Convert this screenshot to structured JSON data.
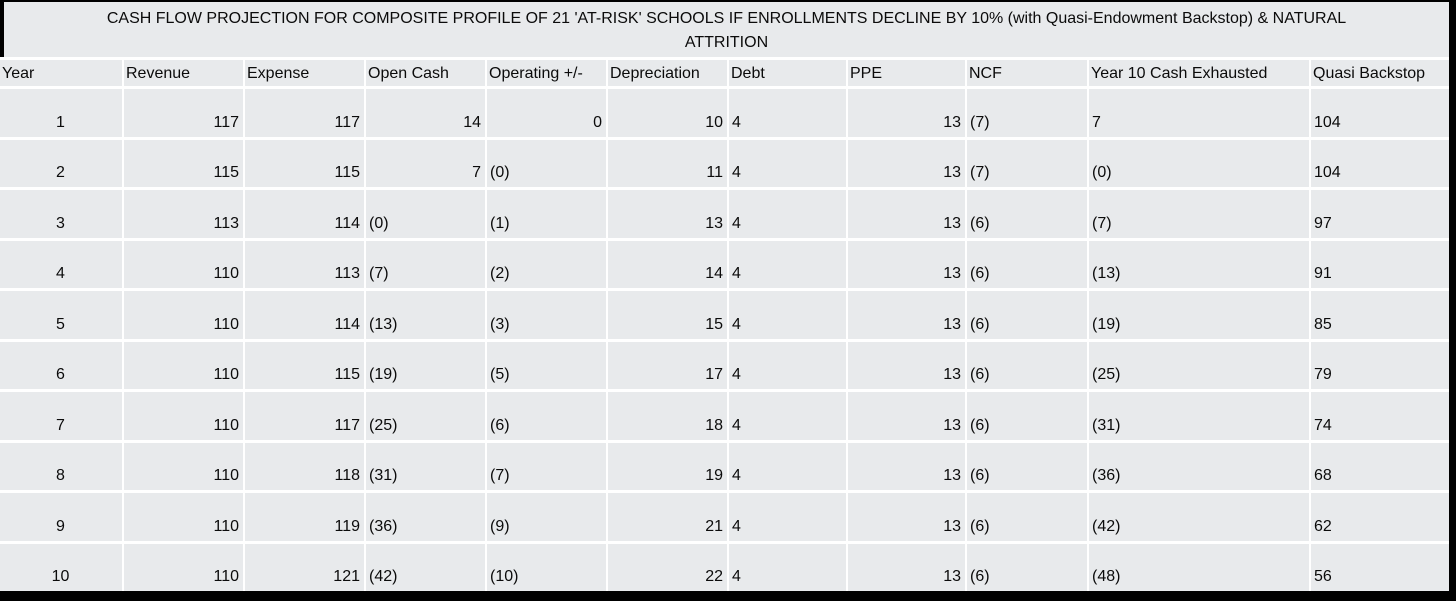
{
  "colors": {
    "cell_background": "#e8eaec",
    "gridline": "#ffffff",
    "canvas_background": "#000000",
    "text": "#0b0b0b"
  },
  "chart_data": {
    "type": "table",
    "title": "CASH FLOW PROJECTION FOR COMPOSITE PROFILE OF 21 'AT-RISK' SCHOOLS IF ENROLLMENTS DECLINE BY 10% (with Quasi-Endowment Backstop) & NATURAL ATTRITION",
    "title_lines": [
      "CASH FLOW PROJECTION FOR COMPOSITE PROFILE OF 21 'AT-RISK' SCHOOLS IF ENROLLMENTS DECLINE BY 10% (with Quasi-Endowment Backstop) & NATURAL",
      "ATTRITION"
    ],
    "columns": [
      "Year",
      "Revenue",
      "Expense",
      "Open Cash",
      "Operating +/-",
      "Depreciation",
      "Debt",
      "PPE",
      "NCF",
      "Year 10 Cash Exhausted",
      "Quasi Backstop"
    ],
    "rows": [
      [
        "1",
        "117",
        "117",
        "14",
        "0",
        "10",
        "4",
        "13",
        "(7)",
        "7",
        "104"
      ],
      [
        "2",
        "115",
        "115",
        "7",
        "(0)",
        "11",
        "4",
        "13",
        "(7)",
        "(0)",
        "104"
      ],
      [
        "3",
        "113",
        "114",
        "(0)",
        "(1)",
        "13",
        "4",
        "13",
        "(6)",
        "(7)",
        "97"
      ],
      [
        "4",
        "110",
        "113",
        "(7)",
        "(2)",
        "14",
        "4",
        "13",
        "(6)",
        "(13)",
        "91"
      ],
      [
        "5",
        "110",
        "114",
        "(13)",
        "(3)",
        "15",
        "4",
        "13",
        "(6)",
        "(19)",
        "85"
      ],
      [
        "6",
        "110",
        "115",
        "(19)",
        "(5)",
        "17",
        "4",
        "13",
        "(6)",
        "(25)",
        "79"
      ],
      [
        "7",
        "110",
        "117",
        "(25)",
        "(6)",
        "18",
        "4",
        "13",
        "(6)",
        "(31)",
        "74"
      ],
      [
        "8",
        "110",
        "118",
        "(31)",
        "(7)",
        "19",
        "4",
        "13",
        "(6)",
        "(36)",
        "68"
      ],
      [
        "9",
        "110",
        "119",
        "(36)",
        "(9)",
        "21",
        "4",
        "13",
        "(6)",
        "(42)",
        "62"
      ],
      [
        "10",
        "110",
        "121",
        "(42)",
        "(10)",
        "22",
        "4",
        "13",
        "(6)",
        "(48)",
        "56"
      ]
    ]
  }
}
